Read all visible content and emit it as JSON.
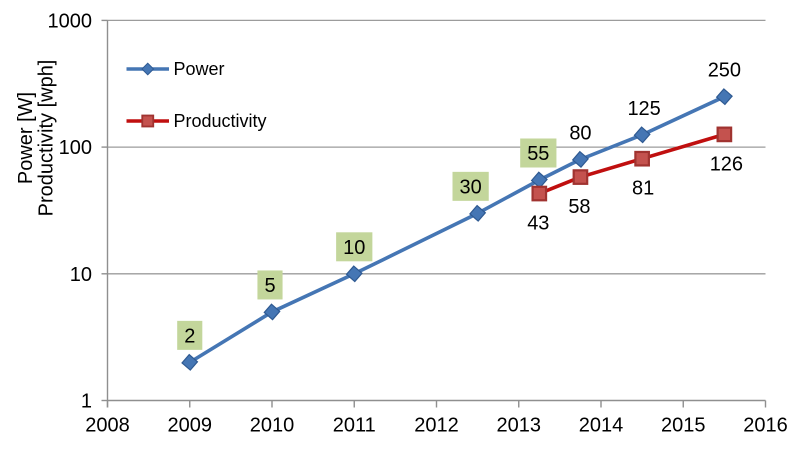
{
  "chart_data": {
    "type": "line",
    "title": "",
    "xlabel": "",
    "ylabel_lines": [
      "Power [W]",
      "Productivity [wph]"
    ],
    "x_axis": {
      "min": 2008,
      "max": 2016,
      "tick_step": 1,
      "tick_labels": [
        "2008",
        "2009",
        "2010",
        "2011",
        "2012",
        "2013",
        "2014",
        "2015",
        "2016"
      ]
    },
    "y_axis": {
      "scale": "log10",
      "min": 1,
      "max": 1000,
      "ticks": [
        1,
        10,
        100,
        1000
      ],
      "tick_labels": [
        "1",
        "10",
        "100",
        "1000"
      ]
    },
    "grid": "horizontal-major-only",
    "legend_position": "inside-top-left",
    "series": [
      {
        "name": "Power",
        "marker": "diamond",
        "line_color": "#4576b4",
        "marker_fill": "#4576b4",
        "marker_stroke": "#2f5a92",
        "points": [
          {
            "x": 2009,
            "y": 2,
            "label": "2",
            "label_pos": "above",
            "boxed": true,
            "dx": 0
          },
          {
            "x": 2010,
            "y": 5,
            "label": "5",
            "label_pos": "above",
            "boxed": true,
            "dx": -2
          },
          {
            "x": 2011,
            "y": 10,
            "label": "10",
            "label_pos": "above",
            "boxed": true,
            "dx": 0
          },
          {
            "x": 2012.5,
            "y": 30,
            "label": "30",
            "label_pos": "above",
            "boxed": true,
            "dx": -7
          },
          {
            "x": 2013.25,
            "y": 55,
            "label": "55",
            "label_pos": "above",
            "boxed": true,
            "dx": -1
          },
          {
            "x": 2013.75,
            "y": 80,
            "label": "80",
            "label_pos": "above",
            "boxed": false,
            "dx": 0
          },
          {
            "x": 2014.5,
            "y": 125,
            "label": "125",
            "label_pos": "above",
            "boxed": false,
            "dx": 2
          },
          {
            "x": 2015.5,
            "y": 250,
            "label": "250",
            "label_pos": "above",
            "boxed": false,
            "dx": 0
          }
        ]
      },
      {
        "name": "Productivity",
        "marker": "square",
        "line_color": "#c00f0f",
        "marker_fill": "#c4524e",
        "marker_stroke": "#a03330",
        "points": [
          {
            "x": 2013.25,
            "y": 43,
            "label": "43",
            "label_pos": "below",
            "boxed": false,
            "dx": -1
          },
          {
            "x": 2013.75,
            "y": 58,
            "label": "58",
            "label_pos": "below",
            "boxed": false,
            "dx": -1
          },
          {
            "x": 2014.5,
            "y": 81,
            "label": "81",
            "label_pos": "below",
            "boxed": false,
            "dx": 1
          },
          {
            "x": 2015.5,
            "y": 126,
            "label": "126",
            "label_pos": "below",
            "boxed": false,
            "dx": 2
          }
        ]
      }
    ],
    "colors": {
      "background": "#ffffff",
      "axis_line": "#8f8f8f",
      "gridline": "#9c9c9c",
      "text": "#000000",
      "label_box_fill": "#c3d69b"
    }
  }
}
